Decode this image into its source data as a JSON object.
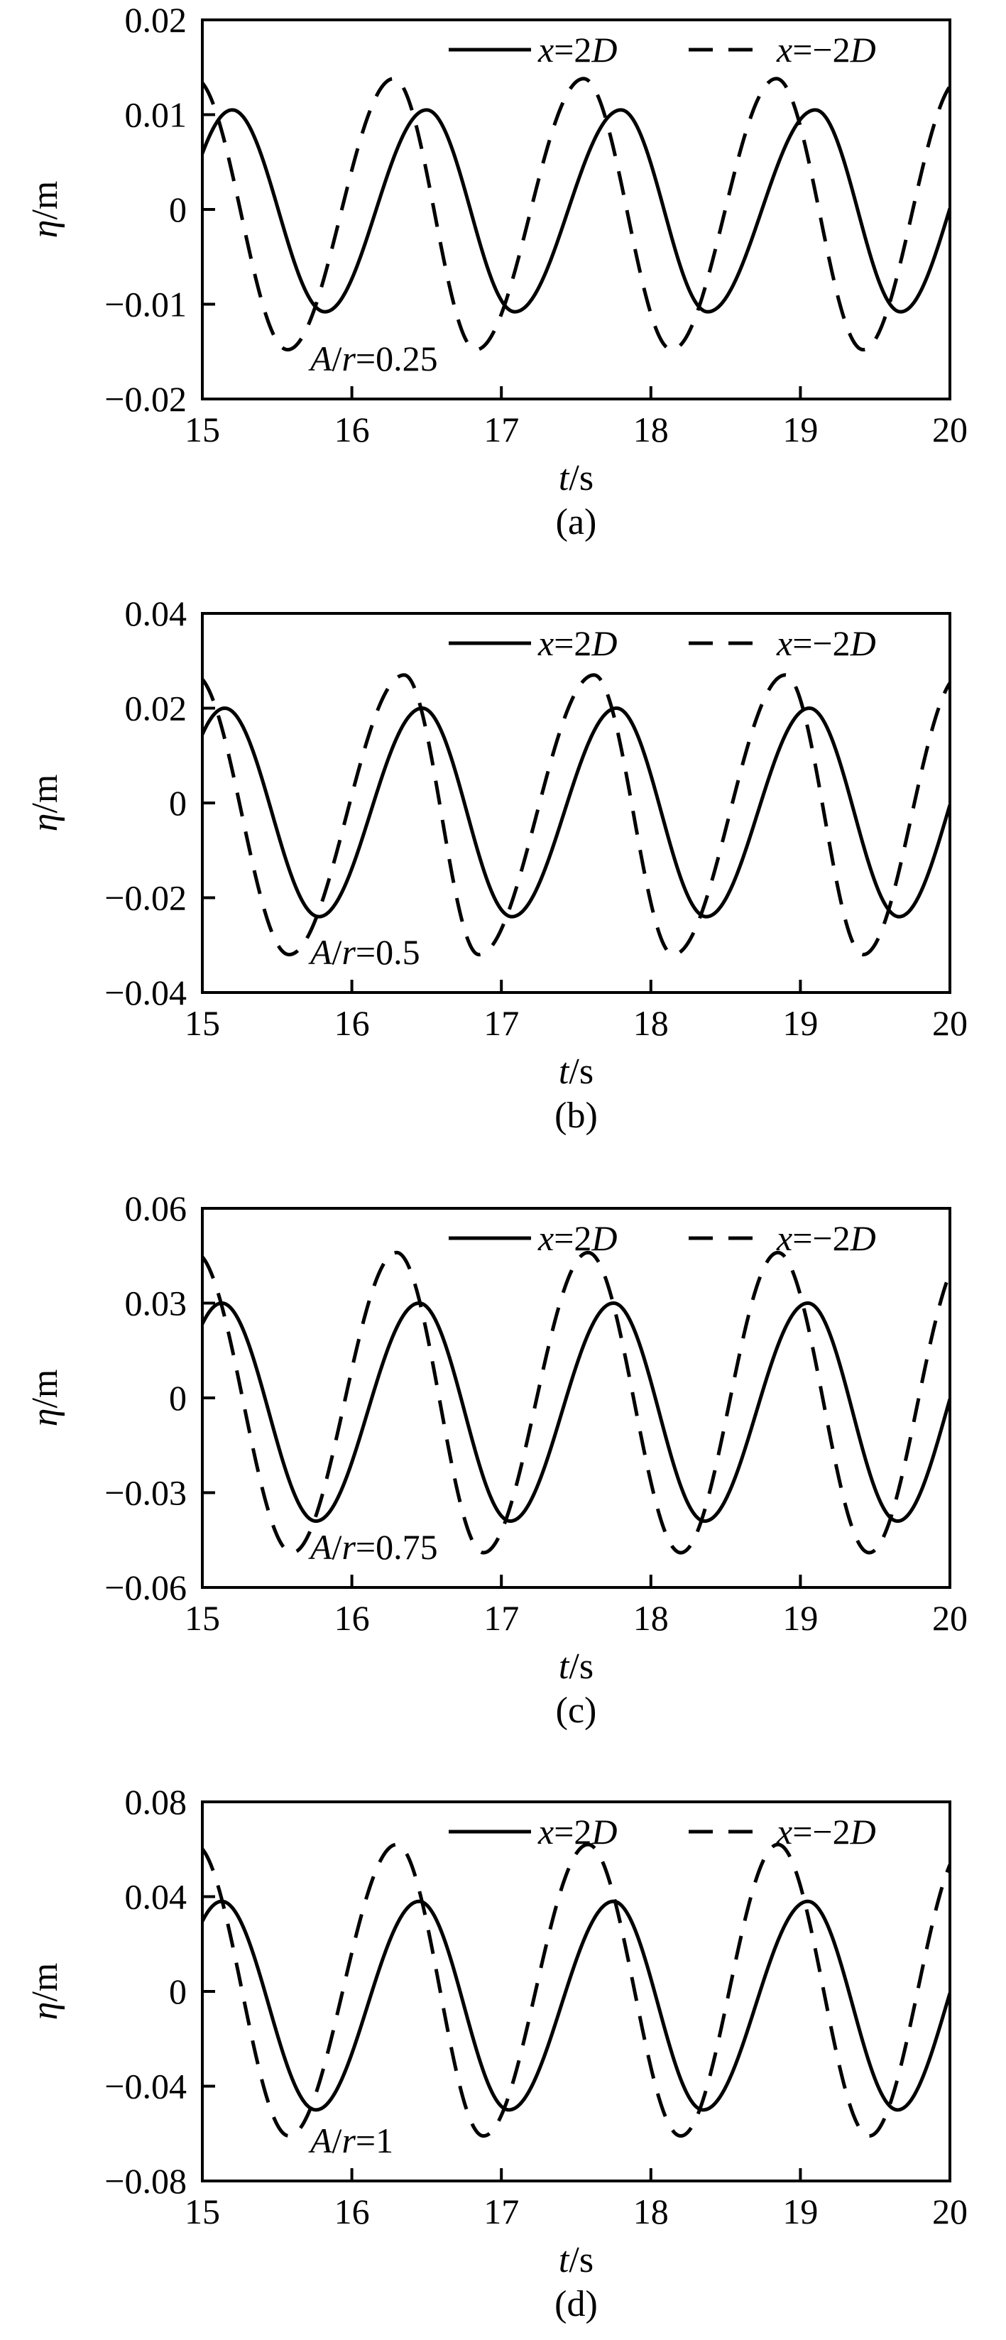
{
  "chart_data": [
    {
      "type": "line",
      "panel_label": "(a)",
      "annotation": "A/r=0.25",
      "xlabel": "t/s",
      "ylabel": "η/m",
      "xlim": [
        15,
        20
      ],
      "ylim": [
        -0.02,
        0.02
      ],
      "x_ticks": [
        "15",
        "16",
        "17",
        "18",
        "19",
        "20"
      ],
      "y_ticks": [
        "0.02",
        "0.01",
        "0",
        "−0.01",
        "−0.02"
      ],
      "legend_position": "top",
      "series": [
        {
          "name": "x=2D",
          "style": "solid",
          "amplitude_pos": 0.0105,
          "amplitude_neg": 0.0108,
          "period": 1.3,
          "peak_times": [
            15.2,
            16.5,
            17.8,
            19.1
          ],
          "trough_times": [
            15.82,
            17.09,
            18.38,
            19.67
          ]
        },
        {
          "name": "x=−2D",
          "style": "dashed",
          "amplitude_pos": 0.0138,
          "amplitude_neg": 0.0148,
          "period": 1.3,
          "peak_times": [
            14.95,
            16.28,
            17.55,
            18.84
          ],
          "trough_times": [
            15.57,
            16.83,
            18.14,
            19.42
          ]
        }
      ]
    },
    {
      "type": "line",
      "panel_label": "(b)",
      "annotation": "A/r=0.5",
      "xlabel": "t/s",
      "ylabel": "η/m",
      "xlim": [
        15,
        20
      ],
      "ylim": [
        -0.04,
        0.04
      ],
      "x_ticks": [
        "15",
        "16",
        "17",
        "18",
        "19",
        "20"
      ],
      "y_ticks": [
        "0.04",
        "0.02",
        "0",
        "−0.02",
        "−0.04"
      ],
      "legend_position": "top",
      "series": [
        {
          "name": "x=2D",
          "style": "solid",
          "amplitude_pos": 0.02,
          "amplitude_neg": 0.024,
          "period": 1.3,
          "peak_times": [
            15.15,
            16.47,
            17.77,
            19.06
          ],
          "trough_times": [
            15.78,
            17.07,
            18.37,
            19.66
          ]
        },
        {
          "name": "x=−2D",
          "style": "dashed",
          "amplitude_pos": 0.027,
          "amplitude_neg": 0.032,
          "period": 1.3,
          "peak_times": [
            14.95,
            16.35,
            17.62,
            18.9
          ],
          "trough_times": [
            15.58,
            16.85,
            18.15,
            19.42
          ]
        }
      ]
    },
    {
      "type": "line",
      "panel_label": "(c)",
      "annotation": "A/r=0.75",
      "xlabel": "t/s",
      "ylabel": "η/m",
      "xlim": [
        15,
        20
      ],
      "ylim": [
        -0.06,
        0.06
      ],
      "x_ticks": [
        "15",
        "16",
        "17",
        "18",
        "19",
        "20"
      ],
      "y_ticks": [
        "0.06",
        "0.03",
        "0",
        "−0.03",
        "−0.06"
      ],
      "legend_position": "top",
      "series": [
        {
          "name": "x=2D",
          "style": "solid",
          "amplitude_pos": 0.03,
          "amplitude_neg": 0.039,
          "period": 1.3,
          "peak_times": [
            15.13,
            16.45,
            17.75,
            19.05
          ],
          "trough_times": [
            15.76,
            17.06,
            18.36,
            19.65
          ]
        },
        {
          "name": "x=−2D",
          "style": "dashed",
          "amplitude_pos": 0.046,
          "amplitude_neg": 0.049,
          "period": 1.3,
          "peak_times": [
            14.95,
            16.3,
            17.58,
            18.85
          ],
          "trough_times": [
            15.6,
            16.88,
            18.2,
            19.46
          ]
        }
      ]
    },
    {
      "type": "line",
      "panel_label": "(d)",
      "annotation": "A/r=1",
      "xlabel": "t/s",
      "ylabel": "η/m",
      "xlim": [
        15,
        20
      ],
      "ylim": [
        -0.08,
        0.08
      ],
      "x_ticks": [
        "15",
        "16",
        "17",
        "18",
        "19",
        "20"
      ],
      "y_ticks": [
        "0.08",
        "0.04",
        "0",
        "−0.04",
        "−0.08"
      ],
      "legend_position": "top",
      "series": [
        {
          "name": "x=2D",
          "style": "solid",
          "amplitude_pos": 0.038,
          "amplitude_neg": 0.05,
          "period": 1.3,
          "peak_times": [
            15.13,
            16.45,
            17.75,
            19.05
          ],
          "trough_times": [
            15.76,
            17.05,
            18.35,
            19.65
          ]
        },
        {
          "name": "x=−2D",
          "style": "dashed",
          "amplitude_pos": 0.062,
          "amplitude_neg": 0.061,
          "period": 1.3,
          "peak_times": [
            14.95,
            16.3,
            17.58,
            18.85
          ],
          "trough_times": [
            15.58,
            16.88,
            18.2,
            19.46
          ]
        }
      ]
    }
  ]
}
